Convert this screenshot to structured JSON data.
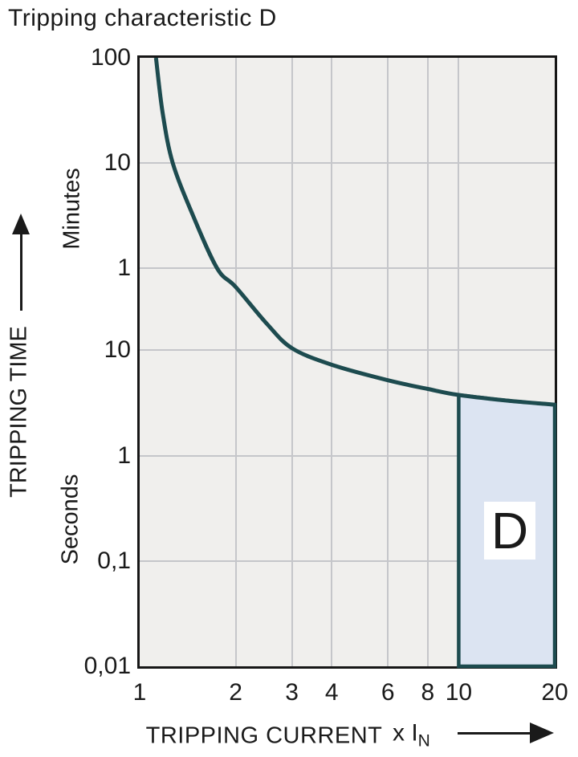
{
  "title": "Tripping characteristic D",
  "colors": {
    "curve": "#1d4b4f",
    "region_fill": "#dce4f2",
    "region_border": "#1d4b4f",
    "plot_background": "#f0efed",
    "gridline": "#c5c6ca",
    "axis_border": "#161616",
    "text": "#1a1a1a",
    "region_label_background": "#ffffff"
  },
  "y_axis": {
    "title": "TRIPPING TIME",
    "unit_label_minutes": "Minutes",
    "unit_label_seconds": "Seconds",
    "ticks": [
      {
        "label": "100",
        "t_seconds": 6000
      },
      {
        "label": "10",
        "t_seconds": 600
      },
      {
        "label": "1",
        "t_seconds": 60
      },
      {
        "label": "10",
        "t_seconds": 10
      },
      {
        "label": "1",
        "t_seconds": 1
      },
      {
        "label": "0,1",
        "t_seconds": 0.1
      },
      {
        "label": "0,01",
        "t_seconds": 0.01
      }
    ]
  },
  "x_axis": {
    "title": "TRIPPING CURRENT",
    "multiplier": "x I",
    "multiplier_sub": "N",
    "ticks": [
      {
        "label": "1",
        "value": 1
      },
      {
        "label": "2",
        "value": 2
      },
      {
        "label": "3",
        "value": 3
      },
      {
        "label": "4",
        "value": 4
      },
      {
        "label": "6",
        "value": 6
      },
      {
        "label": "8",
        "value": 8
      },
      {
        "label": "10",
        "value": 10
      },
      {
        "label": "20",
        "value": 20
      }
    ]
  },
  "region": {
    "label": "D",
    "x_range": [
      10,
      20
    ],
    "bottom_t_seconds": 0.01,
    "top": "curve"
  },
  "chart_data": {
    "type": "line",
    "title": "Tripping characteristic D",
    "xlabel": "TRIPPING CURRENT (x IN)",
    "ylabel": "TRIPPING TIME (Minutes / Seconds)",
    "x_scale": "log",
    "y_scale": "log",
    "xlim": [
      1,
      20
    ],
    "ylim_seconds": [
      0.01,
      6000
    ],
    "x_ticks": [
      1,
      2,
      3,
      4,
      6,
      8,
      10,
      20
    ],
    "y_ticks_seconds": [
      6000,
      600,
      60,
      10,
      1,
      0.1,
      0.01
    ],
    "grid": true,
    "legend": "none",
    "series": [
      {
        "name": "tripping-curve",
        "points_I_t_seconds": [
          [
            1.125,
            6000
          ],
          [
            1.18,
            1800
          ],
          [
            1.27,
            600
          ],
          [
            1.47,
            190
          ],
          [
            1.75,
            60
          ],
          [
            2.0,
            40
          ],
          [
            2.5,
            18
          ],
          [
            3.0,
            10.5
          ],
          [
            4.0,
            7.3
          ],
          [
            6.0,
            5.2
          ],
          [
            8.0,
            4.3
          ],
          [
            10.0,
            3.77
          ],
          [
            14.0,
            3.35
          ],
          [
            20.0,
            3.05
          ]
        ]
      }
    ],
    "shaded_region": {
      "label": "D",
      "x_range": [
        10,
        20
      ],
      "y_from_seconds": 0.01,
      "y_to": "curve"
    }
  }
}
